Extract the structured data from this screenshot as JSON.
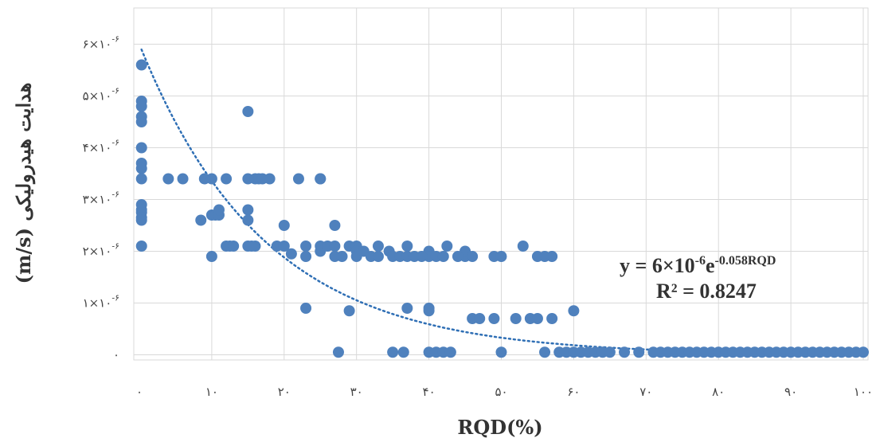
{
  "chart_data": {
    "type": "scatter",
    "xlabel": "RQD(%)",
    "ylabel": "هدایت هیدرولیکی (m/s)",
    "x_ticks": [
      "۰",
      "۱۰",
      "۲۰",
      "۳۰",
      "۴۰",
      "۵۰",
      "۶۰",
      "۷۰",
      "۸۰",
      "۹۰",
      "۱۰۰"
    ],
    "x_tick_values": [
      0,
      10,
      20,
      30,
      40,
      50,
      60,
      70,
      80,
      90,
      100
    ],
    "y_ticks": [
      "۰",
      "۱×۱۰",
      "۲×۱۰",
      "۳×۱۰",
      "۴×۱۰",
      "۵×۱۰",
      "۶×۱۰"
    ],
    "y_tick_exponent": "-۶",
    "y_tick_values": [
      0,
      1e-06,
      2e-06,
      3e-06,
      4e-06,
      5e-06,
      6e-06
    ],
    "xlim": [
      0,
      100
    ],
    "ylim": [
      -1e-07,
      6.7e-06
    ],
    "grid": true,
    "trendline": {
      "type": "exponential",
      "a": 6e-06,
      "b": -0.058,
      "equation_main": "y = 6×10",
      "equation_exp1": "-6",
      "equation_mid": "e",
      "equation_exp2": "-0.058RQD",
      "r2_label": "R² = 0.8247"
    },
    "points": [
      [
        0.3,
        5.6e-06
      ],
      [
        0.3,
        4.9e-06
      ],
      [
        0.3,
        4.8e-06
      ],
      [
        0.3,
        4.6e-06
      ],
      [
        0.3,
        4.5e-06
      ],
      [
        0.3,
        4e-06
      ],
      [
        0.3,
        3.7e-06
      ],
      [
        0.3,
        3.6e-06
      ],
      [
        0.3,
        3.4e-06
      ],
      [
        0.3,
        2.9e-06
      ],
      [
        0.3,
        2.8e-06
      ],
      [
        0.3,
        2.75e-06
      ],
      [
        0.3,
        2.65e-06
      ],
      [
        0.3,
        2.6e-06
      ],
      [
        0.3,
        2.1e-06
      ],
      [
        4,
        3.4e-06
      ],
      [
        6,
        3.4e-06
      ],
      [
        9,
        3.4e-06
      ],
      [
        10,
        3.4e-06
      ],
      [
        8.5,
        2.6e-06
      ],
      [
        10,
        2.7e-06
      ],
      [
        10.5,
        2.7e-06
      ],
      [
        11,
        2.7e-06
      ],
      [
        11,
        2.8e-06
      ],
      [
        10,
        1.9e-06
      ],
      [
        12,
        2.1e-06
      ],
      [
        12.5,
        2.1e-06
      ],
      [
        13,
        2.1e-06
      ],
      [
        12,
        3.4e-06
      ],
      [
        15,
        4.7e-06
      ],
      [
        15,
        3.4e-06
      ],
      [
        15,
        2.8e-06
      ],
      [
        15,
        2.6e-06
      ],
      [
        15,
        2.1e-06
      ],
      [
        16,
        3.4e-06
      ],
      [
        16.5,
        3.4e-06
      ],
      [
        17,
        3.4e-06
      ],
      [
        18,
        3.4e-06
      ],
      [
        16,
        2.1e-06
      ],
      [
        15.5,
        2.1e-06
      ],
      [
        20,
        2.5e-06
      ],
      [
        19,
        2.1e-06
      ],
      [
        20,
        2.1e-06
      ],
      [
        21,
        1.95e-06
      ],
      [
        22,
        3.4e-06
      ],
      [
        23,
        2.1e-06
      ],
      [
        23,
        1.9e-06
      ],
      [
        23,
        9e-07
      ],
      [
        25,
        3.4e-06
      ],
      [
        25,
        3.4e-06
      ],
      [
        25,
        2.1e-06
      ],
      [
        25,
        2e-06
      ],
      [
        26,
        2.1e-06
      ],
      [
        27,
        2.5e-06
      ],
      [
        27,
        1.9e-06
      ],
      [
        27,
        2.1e-06
      ],
      [
        28,
        1.9e-06
      ],
      [
        27.5,
        5e-08
      ],
      [
        29,
        2.1e-06
      ],
      [
        29,
        8.5e-07
      ],
      [
        30,
        2.1e-06
      ],
      [
        30,
        2e-06
      ],
      [
        30,
        1.9e-06
      ],
      [
        31,
        2e-06
      ],
      [
        32,
        1.9e-06
      ],
      [
        33,
        1.9e-06
      ],
      [
        33,
        2.1e-06
      ],
      [
        34.5,
        2e-06
      ],
      [
        35,
        1.9e-06
      ],
      [
        35,
        5e-08
      ],
      [
        36,
        1.9e-06
      ],
      [
        37,
        1.9e-06
      ],
      [
        37,
        2.1e-06
      ],
      [
        36.5,
        5e-08
      ],
      [
        37,
        9e-07
      ],
      [
        38,
        1.9e-06
      ],
      [
        40,
        2e-06
      ],
      [
        40,
        1.9e-06
      ],
      [
        39,
        1.9e-06
      ],
      [
        40,
        9e-07
      ],
      [
        40,
        8.5e-07
      ],
      [
        40,
        5e-08
      ],
      [
        41,
        1.9e-06
      ],
      [
        41,
        5e-08
      ],
      [
        42,
        1.9e-06
      ],
      [
        42,
        5e-08
      ],
      [
        42.5,
        2.1e-06
      ],
      [
        43,
        5e-08
      ],
      [
        45,
        1.9e-06
      ],
      [
        45,
        2e-06
      ],
      [
        46,
        1.9e-06
      ],
      [
        44,
        1.9e-06
      ],
      [
        46,
        7e-07
      ],
      [
        47,
        7e-07
      ],
      [
        49,
        7e-07
      ],
      [
        49,
        1.9e-06
      ],
      [
        50,
        1.9e-06
      ],
      [
        50,
        5e-08
      ],
      [
        53,
        2.1e-06
      ],
      [
        52,
        7e-07
      ],
      [
        54,
        7e-07
      ],
      [
        55,
        7e-07
      ],
      [
        55,
        1.9e-06
      ],
      [
        56,
        1.9e-06
      ],
      [
        56,
        5e-08
      ],
      [
        57,
        1.9e-06
      ],
      [
        57,
        7e-07
      ],
      [
        58,
        5e-08
      ],
      [
        60,
        8.5e-07
      ],
      [
        59,
        5e-08
      ],
      [
        60,
        5e-08
      ],
      [
        61,
        5e-08
      ],
      [
        62,
        5e-08
      ],
      [
        63,
        5e-08
      ],
      [
        64,
        5e-08
      ],
      [
        65,
        5e-08
      ],
      [
        67,
        5e-08
      ],
      [
        69,
        5e-08
      ],
      [
        71,
        5e-08
      ],
      [
        72,
        5e-08
      ],
      [
        73,
        5e-08
      ],
      [
        74,
        5e-08
      ],
      [
        75,
        5e-08
      ],
      [
        76,
        5e-08
      ],
      [
        77,
        5e-08
      ],
      [
        78,
        5e-08
      ],
      [
        79,
        5e-08
      ],
      [
        80,
        5e-08
      ],
      [
        81,
        5e-08
      ],
      [
        82,
        5e-08
      ],
      [
        83,
        5e-08
      ],
      [
        84,
        5e-08
      ],
      [
        85,
        5e-08
      ],
      [
        86,
        5e-08
      ],
      [
        87,
        5e-08
      ],
      [
        88,
        5e-08
      ],
      [
        89,
        5e-08
      ],
      [
        90,
        5e-08
      ],
      [
        91,
        5e-08
      ],
      [
        92,
        5e-08
      ],
      [
        93,
        5e-08
      ],
      [
        94,
        5e-08
      ],
      [
        95,
        5e-08
      ],
      [
        96,
        5e-08
      ],
      [
        97,
        5e-08
      ],
      [
        98,
        5e-08
      ],
      [
        99,
        5e-08
      ],
      [
        100,
        5e-08
      ]
    ],
    "colors": {
      "point": "#4f81bd",
      "trendline": "#2f6fb5",
      "grid": "#d9d9d9"
    }
  }
}
